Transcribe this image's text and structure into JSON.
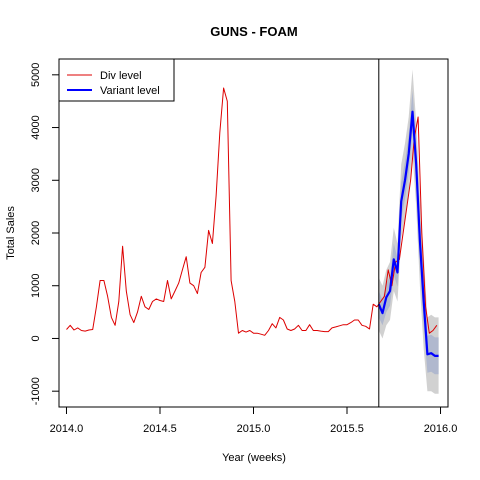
{
  "chart_data": {
    "type": "line",
    "title": "GUNS - FOAM",
    "xlabel": "Year (weeks)",
    "ylabel": "Total Sales",
    "xlim": [
      2013.96,
      2016.04
    ],
    "ylim": [
      -1300,
      5300
    ],
    "x_ticks": [
      2014.0,
      2014.5,
      2015.0,
      2015.5,
      2016.0
    ],
    "x_tick_labels": [
      "2014.0",
      "2014.5",
      "2015.0",
      "2015.5",
      "2016.0"
    ],
    "y_ticks": [
      -1000,
      0,
      1000,
      2000,
      3000,
      4000,
      5000
    ],
    "y_tick_labels": [
      "-1000",
      "0",
      "1000",
      "2000",
      "3000",
      "4000",
      "5000"
    ],
    "forecast_origin": 2015.67,
    "legend_position": "top-left",
    "series": [
      {
        "name": "Div level",
        "color": "#dd0000",
        "x": [
          2014.0,
          2014.02,
          2014.04,
          2014.06,
          2014.08,
          2014.1,
          2014.12,
          2014.14,
          2014.16,
          2014.18,
          2014.2,
          2014.22,
          2014.24,
          2014.26,
          2014.28,
          2014.3,
          2014.32,
          2014.34,
          2014.36,
          2014.38,
          2014.4,
          2014.42,
          2014.44,
          2014.46,
          2014.48,
          2014.5,
          2014.52,
          2014.54,
          2014.56,
          2014.58,
          2014.6,
          2014.62,
          2014.64,
          2014.66,
          2014.68,
          2014.7,
          2014.72,
          2014.74,
          2014.76,
          2014.78,
          2014.8,
          2014.82,
          2014.84,
          2014.86,
          2014.88,
          2014.9,
          2014.92,
          2014.94,
          2014.96,
          2014.98,
          2015.0,
          2015.02,
          2015.04,
          2015.06,
          2015.08,
          2015.1,
          2015.12,
          2015.14,
          2015.16,
          2015.18,
          2015.2,
          2015.22,
          2015.24,
          2015.26,
          2015.28,
          2015.3,
          2015.32,
          2015.34,
          2015.36,
          2015.38,
          2015.4,
          2015.42,
          2015.44,
          2015.46,
          2015.48,
          2015.5,
          2015.52,
          2015.54,
          2015.56,
          2015.58,
          2015.6,
          2015.62,
          2015.64,
          2015.66,
          2015.68,
          2015.7,
          2015.72,
          2015.74,
          2015.76,
          2015.78,
          2015.8,
          2015.82,
          2015.84,
          2015.86,
          2015.88,
          2015.9,
          2015.92,
          2015.94,
          2015.96,
          2015.98
        ],
        "values": [
          170,
          250,
          160,
          200,
          150,
          140,
          160,
          170,
          600,
          1100,
          1100,
          800,
          400,
          250,
          700,
          1750,
          900,
          450,
          300,
          500,
          800,
          600,
          550,
          700,
          750,
          720,
          700,
          1100,
          750,
          900,
          1050,
          1300,
          1550,
          1050,
          1000,
          850,
          1250,
          1350,
          2050,
          1800,
          2700,
          3900,
          4750,
          4500,
          1100,
          700,
          100,
          150,
          120,
          150,
          100,
          100,
          80,
          60,
          150,
          280,
          200,
          400,
          350,
          180,
          150,
          180,
          250,
          150,
          150,
          260,
          150,
          150,
          140,
          130,
          130,
          200,
          220,
          240,
          260,
          260,
          300,
          350,
          350,
          250,
          230,
          180,
          650,
          600,
          700,
          800,
          1300,
          1000,
          1450,
          1500,
          2000,
          2500,
          3000,
          3800,
          4200,
          2000,
          600,
          100,
          150,
          250
        ]
      },
      {
        "name": "Variant level",
        "color": "#0000ff",
        "x": [
          2015.67,
          2015.69,
          2015.71,
          2015.73,
          2015.75,
          2015.77,
          2015.79,
          2015.81,
          2015.83,
          2015.85,
          2015.87,
          2015.89,
          2015.91,
          2015.93,
          2015.95,
          2015.97,
          2015.99
        ],
        "values": [
          650,
          480,
          780,
          900,
          1500,
          1250,
          2600,
          3000,
          3500,
          4300,
          3300,
          1850,
          700,
          -300,
          -280,
          -330,
          -330
        ]
      }
    ],
    "forecast_bands": {
      "x": [
        2015.67,
        2015.69,
        2015.71,
        2015.73,
        2015.75,
        2015.77,
        2015.79,
        2015.81,
        2015.83,
        2015.85,
        2015.87,
        2015.89,
        2015.91,
        2015.93,
        2015.95,
        2015.97,
        2015.99
      ],
      "outer_lower": [
        150,
        0,
        250,
        350,
        900,
        700,
        1900,
        2300,
        2800,
        3500,
        2500,
        1000,
        -200,
        -1000,
        -1000,
        -1050,
        -1050
      ],
      "outer_upper": [
        1150,
        1000,
        1300,
        1450,
        2100,
        1800,
        3300,
        3700,
        4200,
        5100,
        4100,
        2700,
        1600,
        400,
        450,
        400,
        400
      ],
      "inner_lower": [
        400,
        250,
        500,
        620,
        1200,
        980,
        2250,
        2650,
        3150,
        3900,
        2900,
        1420,
        250,
        -650,
        -630,
        -680,
        -680
      ],
      "inner_upper": [
        900,
        730,
        1050,
        1180,
        1800,
        1520,
        2950,
        3350,
        3850,
        4700,
        3700,
        2280,
        1150,
        50,
        70,
        20,
        20
      ],
      "outer_color": "#c6c6c6",
      "inner_color": "#aab4ce"
    }
  }
}
